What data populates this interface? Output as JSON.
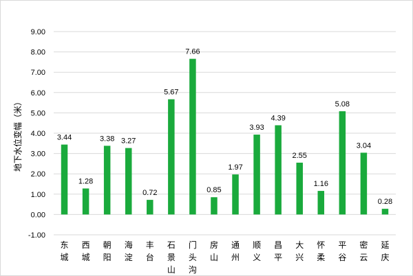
{
  "chart_data": {
    "type": "bar",
    "title": "",
    "xlabel": "",
    "ylabel": "地下水位变幅（米）",
    "ylim": [
      -1.0,
      9.0
    ],
    "yticks": [
      "-1.00",
      "0.00",
      "1.00",
      "2.00",
      "3.00",
      "4.00",
      "5.00",
      "6.00",
      "7.00",
      "8.00",
      "9.00"
    ],
    "grid": true,
    "legend": "none",
    "bar_color": "#1aaa3c",
    "categories": [
      "东城",
      "西城",
      "朝阳",
      "海淀",
      "丰台",
      "石景山",
      "门头沟",
      "房山",
      "通州",
      "顺义",
      "昌平",
      "大兴",
      "怀柔",
      "平谷",
      "密云",
      "延庆"
    ],
    "values": [
      3.44,
      1.28,
      3.38,
      3.27,
      0.72,
      5.67,
      7.66,
      0.85,
      1.97,
      3.93,
      4.39,
      2.55,
      1.16,
      5.08,
      3.04,
      0.28
    ],
    "value_labels": [
      "3.44",
      "1.28",
      "3.38",
      "3.27",
      "0.72",
      "5.67",
      "7.66",
      "0.85",
      "1.97",
      "3.93",
      "4.39",
      "2.55",
      "1.16",
      "5.08",
      "3.04",
      "0.28"
    ]
  }
}
